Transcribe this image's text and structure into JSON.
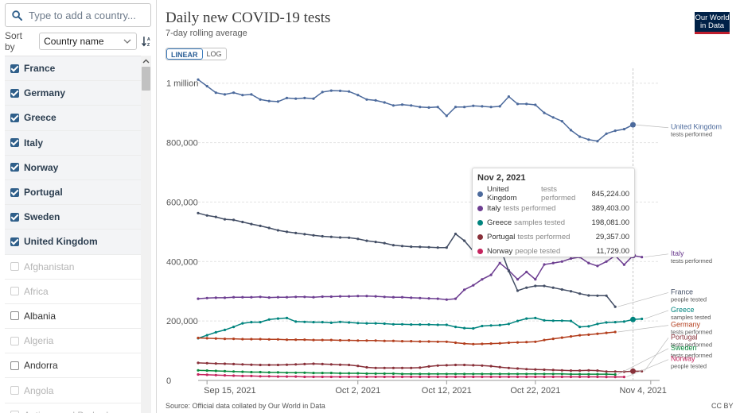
{
  "sidebar": {
    "search_placeholder": "Type to add a country...",
    "sort_label": "Sort by",
    "sort_value": "Country name",
    "countries": [
      {
        "name": "France",
        "state": "selected"
      },
      {
        "name": "Germany",
        "state": "selected"
      },
      {
        "name": "Greece",
        "state": "selected"
      },
      {
        "name": "Italy",
        "state": "selected"
      },
      {
        "name": "Norway",
        "state": "selected"
      },
      {
        "name": "Portugal",
        "state": "selected"
      },
      {
        "name": "Sweden",
        "state": "selected"
      },
      {
        "name": "United Kingdom",
        "state": "selected"
      },
      {
        "name": "Afghanistan",
        "state": "disabled"
      },
      {
        "name": "Africa",
        "state": "disabled"
      },
      {
        "name": "Albania",
        "state": "unselected"
      },
      {
        "name": "Algeria",
        "state": "disabled"
      },
      {
        "name": "Andorra",
        "state": "unselected"
      },
      {
        "name": "Angola",
        "state": "disabled"
      },
      {
        "name": "Antigua and Barbuda",
        "state": "disabled"
      }
    ]
  },
  "header": {
    "title": "Daily new COVID-19 tests",
    "subtitle": "7-day rolling average",
    "logo_line1": "Our World",
    "logo_line2": "in Data",
    "scale_linear": "LINEAR",
    "scale_log": "LOG"
  },
  "footer": {
    "source": "Source: Official data collated by Our World in Data",
    "license": "CC BY"
  },
  "tooltip": {
    "date": "Nov 2, 2021",
    "rows": [
      {
        "country": "United Kingdom",
        "metric": "tests performed",
        "value": "845,224.00",
        "color": "#4c6a9c"
      },
      {
        "country": "Italy",
        "metric": "tests performed",
        "value": "389,403.00",
        "color": "#6d3e91"
      },
      {
        "country": "Greece",
        "metric": "samples tested",
        "value": "198,081.00",
        "color": "#00847e"
      },
      {
        "country": "Portugal",
        "metric": "tests performed",
        "value": "29,357.00",
        "color": "#883039"
      },
      {
        "country": "Norway",
        "metric": "people tested",
        "value": "11,729.00",
        "color": "#c5245e"
      }
    ]
  },
  "chart_data": {
    "type": "line",
    "ylim": [
      0,
      1050000
    ],
    "y_ticks": [
      0,
      200000,
      400000,
      600000,
      800000,
      1000000
    ],
    "y_tick_labels": [
      "0",
      "200,000",
      "400,000",
      "600,000",
      "800,000",
      "1 million"
    ],
    "x_range": [
      "2021-09-14",
      "2021-11-05"
    ],
    "x_ticks": [
      "2021-09-15",
      "2021-10-02",
      "2021-10-12",
      "2021-10-22",
      "2021-11-04"
    ],
    "x_tick_labels": [
      "Sep 15, 2021",
      "Oct 2, 2021",
      "Oct 12, 2021",
      "Oct 22, 2021",
      "Nov 4, 2021"
    ],
    "hover_date": "2021-11-02",
    "series": [
      {
        "name": "United Kingdom",
        "metric": "tests performed",
        "color": "#4c6a9c",
        "label_y_value": 845000,
        "start": "2021-09-14",
        "values": [
          1012000,
          990000,
          968000,
          962000,
          968000,
          960000,
          962000,
          945000,
          940000,
          938000,
          950000,
          948000,
          950000,
          948000,
          970000,
          975000,
          974000,
          972000,
          960000,
          945000,
          942000,
          935000,
          925000,
          928000,
          925000,
          920000,
          918000,
          920000,
          890000,
          920000,
          920000,
          924000,
          922000,
          920000,
          922000,
          955000,
          930000,
          930000,
          927000,
          900000,
          885000,
          872000,
          842000,
          820000,
          810000,
          805000,
          830000,
          840000,
          845224,
          860000
        ]
      },
      {
        "name": "Italy",
        "metric": "tests performed",
        "color": "#6d3e91",
        "label_y_value": 420000,
        "start": "2021-09-14",
        "values": [
          275000,
          277000,
          278000,
          278000,
          280000,
          280000,
          280000,
          281000,
          279000,
          280000,
          280000,
          281000,
          281000,
          280000,
          282000,
          282000,
          283000,
          283000,
          284000,
          284000,
          283000,
          281000,
          280000,
          280000,
          278000,
          277000,
          276000,
          275000,
          272000,
          275000,
          305000,
          320000,
          340000,
          355000,
          395000,
          370000,
          340000,
          365000,
          340000,
          390000,
          395000,
          400000,
          410000,
          415000,
          395000,
          385000,
          400000,
          420000,
          389403,
          420000,
          415000
        ]
      },
      {
        "name": "France",
        "metric": "people tested",
        "color": "#434e65",
        "label_y_value": 290000,
        "start": "2021-09-14",
        "values": [
          563000,
          555000,
          550000,
          542000,
          540000,
          533000,
          526000,
          520000,
          513000,
          505000,
          500000,
          496000,
          492000,
          488000,
          485000,
          483000,
          481000,
          480000,
          476000,
          470000,
          466000,
          462000,
          455000,
          452000,
          450000,
          449000,
          448000,
          447000,
          447000,
          493000,
          470000,
          435000,
          470000,
          450000,
          450000,
          368000,
          302000,
          312000,
          318000,
          318000,
          312000,
          306000,
          300000,
          292000,
          286000,
          285000,
          285000,
          248000
        ]
      },
      {
        "name": "Greece",
        "metric": "samples tested",
        "color": "#00847e",
        "label_y_value": 230000,
        "start": "2021-09-14",
        "values": [
          142000,
          152000,
          162000,
          170000,
          180000,
          192000,
          196000,
          196000,
          205000,
          208000,
          210000,
          198000,
          197000,
          196000,
          196000,
          194000,
          197000,
          195000,
          193000,
          192000,
          192000,
          191000,
          189000,
          189000,
          188000,
          188000,
          188000,
          187000,
          187000,
          180000,
          176000,
          175000,
          183000,
          185000,
          186000,
          190000,
          200000,
          208000,
          210000,
          202000,
          201000,
          201000,
          200000,
          180000,
          182000,
          190000,
          195000,
          196000,
          198081,
          205000,
          207000
        ]
      },
      {
        "name": "Germany",
        "metric": "tests performed",
        "color": "#b33f1e",
        "label_y_value": 180000,
        "start": "2021-09-14",
        "values": [
          143000,
          142000,
          141000,
          140000,
          140000,
          139000,
          139000,
          139000,
          138000,
          138000,
          137000,
          137000,
          137000,
          136000,
          136000,
          136000,
          135000,
          135000,
          134000,
          134000,
          134000,
          133000,
          133000,
          132000,
          132000,
          131000,
          131000,
          130000,
          130000,
          127000,
          124000,
          122000,
          123000,
          124000,
          125000,
          127000,
          128000,
          129000,
          130000,
          136000,
          140000,
          144000,
          148000,
          152000,
          154000,
          157000,
          160000,
          163000
        ]
      },
      {
        "name": "Portugal",
        "metric": "tests performed",
        "color": "#883039",
        "label_y_value": 138000,
        "start": "2021-09-14",
        "values": [
          59000,
          58000,
          57000,
          56000,
          55000,
          54000,
          53000,
          52000,
          52000,
          52000,
          53000,
          54000,
          55000,
          56000,
          55000,
          54000,
          53000,
          52000,
          49000,
          44000,
          42000,
          42000,
          42000,
          42000,
          42000,
          43000,
          47000,
          50000,
          51000,
          52000,
          52000,
          51000,
          50000,
          48000,
          45000,
          42000,
          40000,
          38000,
          37000,
          36000,
          35000,
          34000,
          33000,
          33000,
          34000,
          33000,
          30000,
          30000,
          29357,
          31000,
          31000
        ]
      },
      {
        "name": "Sweden",
        "metric": "tests performed",
        "color": "#0b8a3e",
        "label_y_value": 102000,
        "start": "2021-09-14",
        "values": [
          34000,
          33000,
          32000,
          31000,
          30000,
          29000,
          28000,
          28000,
          27000,
          27000,
          26000,
          26000,
          26000,
          25000,
          25000,
          25000,
          24000,
          24000,
          24000,
          23000,
          23000,
          23000,
          23000,
          22000,
          22000,
          22000,
          22000,
          22000,
          22000,
          22000,
          22000,
          22000,
          22000,
          22000,
          22000,
          22000,
          22000,
          22000,
          22000,
          22000,
          22000,
          22000,
          21000,
          21000,
          21000,
          21000,
          21000,
          20000
        ]
      },
      {
        "name": "Norway",
        "metric": "people tested",
        "color": "#c5245e",
        "label_y_value": 65000,
        "start": "2021-09-14",
        "values": [
          20000,
          19000,
          18000,
          17000,
          16000,
          15000,
          15000,
          14000,
          14000,
          13000,
          13000,
          13000,
          12000,
          12000,
          12000,
          12000,
          12000,
          12000,
          12000,
          12000,
          12000,
          12000,
          12000,
          12000,
          12000,
          12000,
          12000,
          12000,
          12000,
          12000,
          12000,
          12000,
          12000,
          12000,
          12000,
          12000,
          12000,
          12000,
          12000,
          12000,
          12000,
          12000,
          12000,
          12000,
          12000,
          12000,
          11800,
          11700,
          11729
        ]
      }
    ]
  }
}
